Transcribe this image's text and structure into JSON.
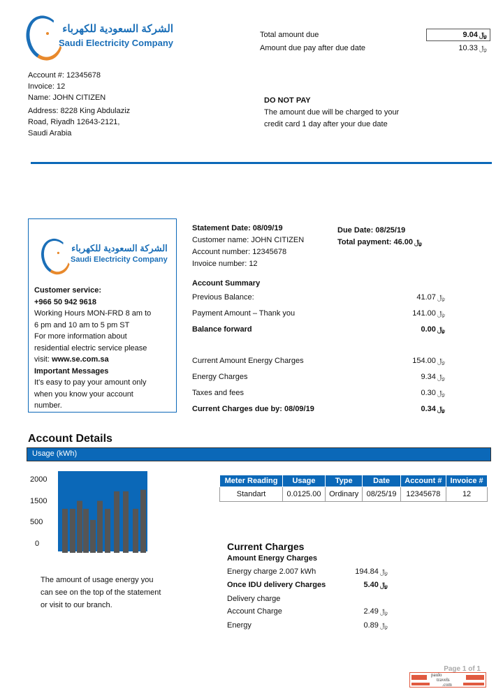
{
  "brand": {
    "arabic_name": "الشركة السعودية للكهرباء",
    "english_name": "Saudi Electricity Company",
    "currency_symbol": "﷼",
    "primary_color": "#0b68b8",
    "accent_color": "#e8892c"
  },
  "header": {
    "total_due_label": "Total amount due",
    "total_due_value": "9.04",
    "after_due_label": "Amount due pay after due date",
    "after_due_value": "10.33",
    "account_line": "Account #:  12345678",
    "invoice_line": "Invoice: 12",
    "name_line": "Name:  JOHN CITIZEN",
    "address_lines": [
      "Address: 8228 King Abdulaziz",
      "Road, Riyadh 12643-2121,",
      "Saudi Arabia"
    ],
    "notice_title": "DO NOT PAY",
    "notice_lines": [
      "The amount due will be charged to your",
      "credit card 1 day after your due date"
    ]
  },
  "sidebox": {
    "cs_title": "Customer service:",
    "phone": "+966 50 942 9618",
    "hours_lines": [
      "Working Hours MON-FRD 8 am to",
      "6 pm and 10 am to 5 pm ST"
    ],
    "info_lines": [
      "For more information  about",
      "residential electric service please"
    ],
    "visit_label": "visit: ",
    "visit_url": "www.se.com.sa",
    "messages_title": "Important Messages",
    "messages_lines": [
      "It's easy to pay your amount only",
      "when you know your account",
      "number."
    ]
  },
  "statement": {
    "statement_date": "Statement Date: 08/09/19",
    "customer_name": "Customer  name: JOHN CITIZEN",
    "account_number": "Account number: 12345678",
    "invoice_number": "Invoice number: 12",
    "due_date": "Due Date: 08/25/19",
    "total_payment": "Total payment: 46.00"
  },
  "summary": {
    "title": "Account  Summary",
    "rows": [
      {
        "label": "Previous Balance:",
        "value": "41.07",
        "bold": false
      },
      {
        "label": "Payment Amount – Thank you",
        "value": "141.00",
        "bold": false
      },
      {
        "label": "Balance forward",
        "value": "0.00",
        "bold": true
      },
      {
        "label": "Current Amount  Energy Charges",
        "value": "154.00",
        "bold": false
      },
      {
        "label": "Energy Charges",
        "value": "9.34",
        "bold": false
      },
      {
        "label": "Taxes and fees",
        "value": "0.30",
        "bold": false
      },
      {
        "label": "Current Charges due by: 08/09/19",
        "value": "0.34",
        "bold": true
      }
    ]
  },
  "details": {
    "title": "Account Details",
    "bar_label": "Usage (kWh)",
    "usage_note_lines": [
      "The amount of usage energy you",
      "can see on the  top of the statement",
      "or visit to our branch."
    ]
  },
  "chart_data": {
    "type": "bar",
    "y_tick_labels": [
      "2000",
      "1500",
      "500",
      "0"
    ],
    "values": [
      1100,
      1100,
      1350,
      1100,
      750,
      1350,
      1100,
      1650,
      1650,
      1100,
      1700
    ],
    "background_color": "#0b68b8",
    "bar_color": "#555555",
    "grid": false
  },
  "meter_table": {
    "headers": [
      "Meter Reading",
      "Usage",
      "Type",
      "Date",
      "Account #",
      "Invoice #"
    ],
    "rows": [
      [
        "Standart",
        "0.0125.00",
        "Ordinary",
        "08/25/19",
        "12345678",
        "12"
      ]
    ]
  },
  "current_charges": {
    "title": "Current Charges",
    "subtitle": "Amount  Energy Charges",
    "rows": [
      {
        "label": "Energy charge 2.007 kWh",
        "value": "194.84",
        "bold": false
      },
      {
        "label": "Once IDU delivery  Charges",
        "value": "5.40",
        "bold": true
      },
      {
        "label": "Delivery charge",
        "value": "",
        "bold": false
      },
      {
        "label": "Account  Charge",
        "value": "2.49",
        "bold": false
      },
      {
        "label": "Energy",
        "value": "0.89",
        "bold": false
      }
    ]
  },
  "footer": {
    "page": "Page 1 of 1",
    "watermark_lines": [
      "paulo",
      "travels",
      ".com"
    ]
  }
}
